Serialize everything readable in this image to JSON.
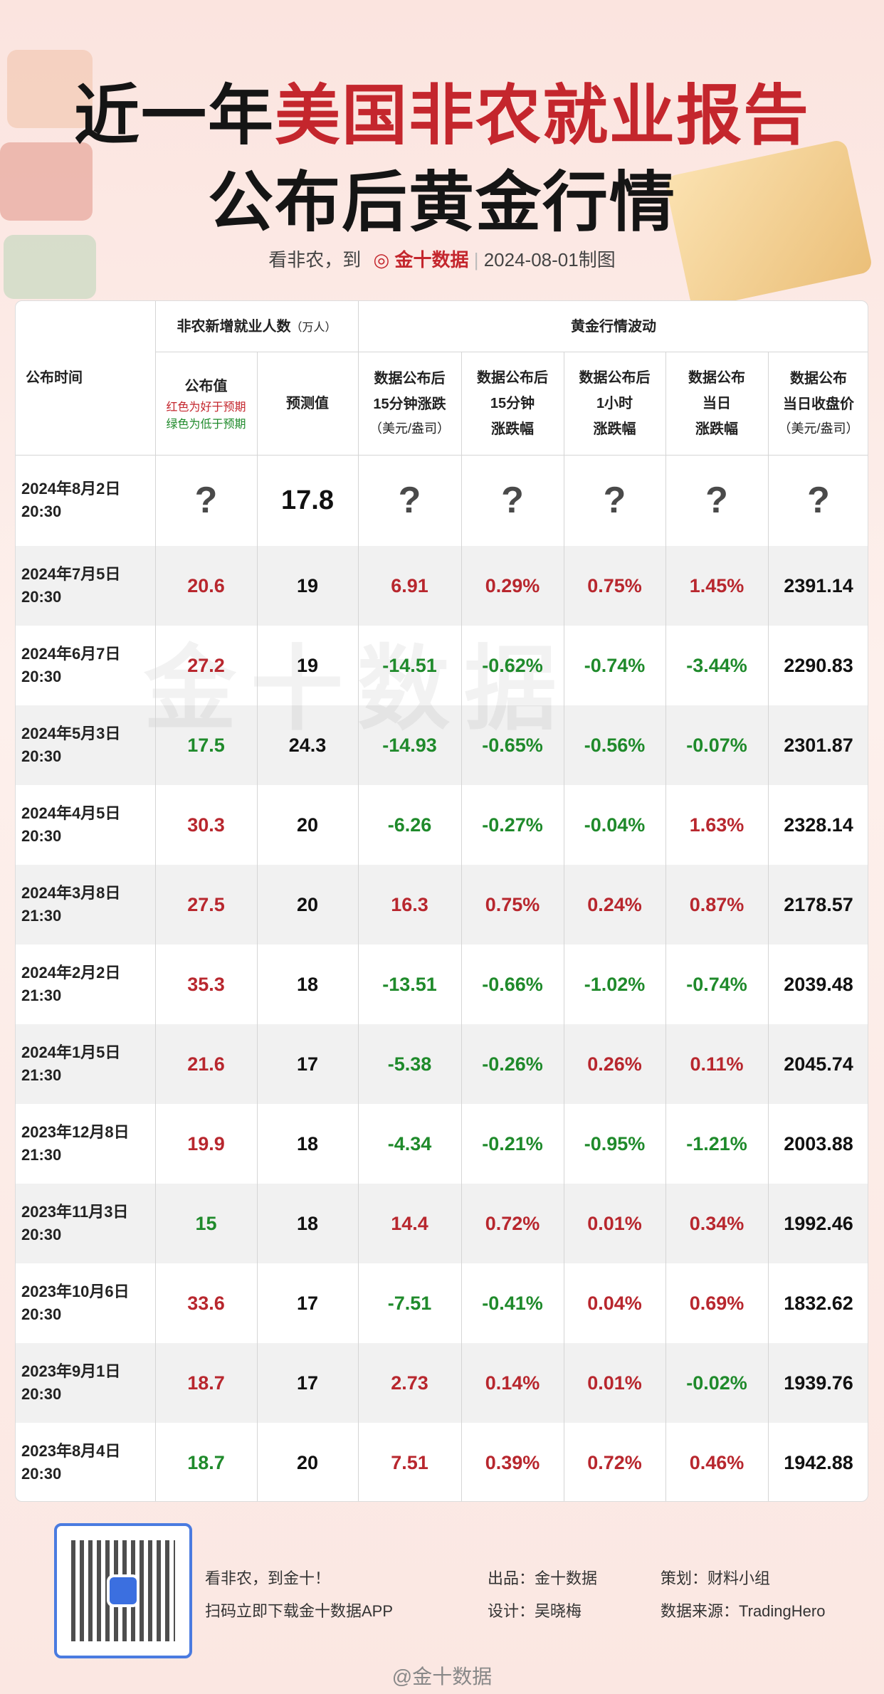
{
  "header": {
    "title_line1": [
      "近一年",
      "美国非农就业报告"
    ],
    "title_line2": "公布后黄金行情",
    "subtitle": [
      "看非农，到",
      "金十数据",
      "2024-08-01制图"
    ]
  },
  "table": {
    "col_date": "公布时间",
    "group_nfp": "非农新增就业人数",
    "group_nfp_unit": "（万人）",
    "group_gold": "黄金行情波动",
    "actual_label": "公布值",
    "actual_note_red": "红色为好于预期",
    "actual_note_green": "绿色为低于预期",
    "forecast_label": "预测值",
    "gold_columns": [
      [
        "数据公布后",
        "15分钟涨跌",
        "（美元/盎司）"
      ],
      [
        "数据公布后",
        "15分钟",
        "涨跌幅"
      ],
      [
        "数据公布后",
        "1小时",
        "涨跌幅"
      ],
      [
        "数据公布",
        "当日",
        "涨跌幅"
      ],
      [
        "数据公布",
        "当日收盘价",
        "（美元/盎司）"
      ]
    ],
    "rows": [
      {
        "date": "2024年8月2日",
        "time": "20:30",
        "values": [
          "?",
          "17.8",
          "?",
          "?",
          "?",
          "?",
          "?"
        ]
      },
      {
        "date": "2024年7月5日",
        "time": "20:30",
        "values": [
          "20.6",
          "19",
          "6.91",
          "0.29%",
          "0.75%",
          "1.45%",
          "2391.14"
        ]
      },
      {
        "date": "2024年6月7日",
        "time": "20:30",
        "values": [
          "27.2",
          "19",
          "-14.51",
          "-0.62%",
          "-0.74%",
          "-3.44%",
          "2290.83"
        ]
      },
      {
        "date": "2024年5月3日",
        "time": "20:30",
        "values": [
          "17.5",
          "24.3",
          "-14.93",
          "-0.65%",
          "-0.56%",
          "-0.07%",
          "2301.87"
        ]
      },
      {
        "date": "2024年4月5日",
        "time": "20:30",
        "values": [
          "30.3",
          "20",
          "-6.26",
          "-0.27%",
          "-0.04%",
          "1.63%",
          "2328.14"
        ]
      },
      {
        "date": "2024年3月8日",
        "time": "21:30",
        "values": [
          "27.5",
          "20",
          "16.3",
          "0.75%",
          "0.24%",
          "0.87%",
          "2178.57"
        ]
      },
      {
        "date": "2024年2月2日",
        "time": "21:30",
        "values": [
          "35.3",
          "18",
          "-13.51",
          "-0.66%",
          "-1.02%",
          "-0.74%",
          "2039.48"
        ]
      },
      {
        "date": "2024年1月5日",
        "time": "21:30",
        "values": [
          "21.6",
          "17",
          "-5.38",
          "-0.26%",
          "0.26%",
          "0.11%",
          "2045.74"
        ]
      },
      {
        "date": "2023年12月8日",
        "time": "21:30",
        "values": [
          "19.9",
          "18",
          "-4.34",
          "-0.21%",
          "-0.95%",
          "-1.21%",
          "2003.88"
        ]
      },
      {
        "date": "2023年11月3日",
        "time": "20:30",
        "values": [
          "15",
          "18",
          "14.4",
          "0.72%",
          "0.01%",
          "0.34%",
          "1992.46"
        ]
      },
      {
        "date": "2023年10月6日",
        "time": "20:30",
        "values": [
          "33.6",
          "17",
          "-7.51",
          "-0.41%",
          "0.04%",
          "0.69%",
          "1832.62"
        ]
      },
      {
        "date": "2023年9月1日",
        "time": "20:30",
        "values": [
          "18.7",
          "17",
          "2.73",
          "0.14%",
          "0.01%",
          "-0.02%",
          "1939.76"
        ]
      },
      {
        "date": "2023年8月4日",
        "time": "20:30",
        "values": [
          "18.7",
          "20",
          "7.51",
          "0.39%",
          "0.72%",
          "0.46%",
          "1942.88"
        ]
      }
    ],
    "watermark": "金十数据"
  },
  "footer": {
    "slogan": "看非农，到金十！",
    "download": "扫码立即下载金十数据APP",
    "producer": "出品：金十数据",
    "designer": "设计：吴晓梅",
    "planner": "策划：财料小组",
    "source": "数据来源：TradingHero",
    "weibo": "@金十数据"
  }
}
